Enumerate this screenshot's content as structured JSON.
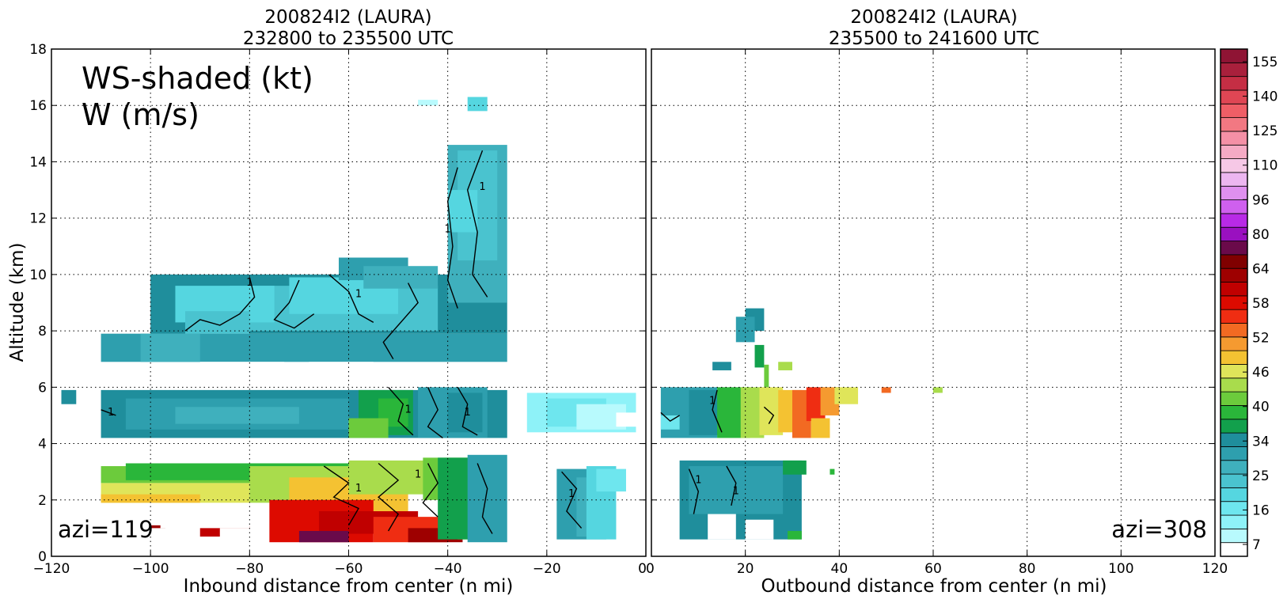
{
  "chart_data": [
    {
      "type": "heatmap",
      "title_line1": "200824I2 (LAURA)",
      "title_line2": "232800 to 235500 UTC",
      "xlabel": "Inbound distance from center (n mi)",
      "ylabel": "Altitude (km)",
      "xlim": [
        -120,
        0
      ],
      "ylim": [
        0,
        18
      ],
      "xticks": [
        "−120",
        "−100",
        "−80",
        "−60",
        "−40",
        "−20",
        "0"
      ],
      "yticks": [
        "0",
        "2",
        "4",
        "6",
        "8",
        "10",
        "12",
        "14",
        "16",
        "18"
      ],
      "grid": true,
      "legend_text_line1": "WS-shaded (kt)",
      "legend_text_line2": "W (m/s)",
      "annotation": "azi=119",
      "contour_label": "1"
    },
    {
      "type": "heatmap",
      "title_line1": "200824I2 (LAURA)",
      "title_line2": "235500 to 241600 UTC",
      "xlabel": "Outbound distance from center (n mi)",
      "xlim": [
        0,
        120
      ],
      "ylim": [
        0,
        18
      ],
      "xticks": [
        "0",
        "20",
        "40",
        "60",
        "80",
        "100",
        "120"
      ],
      "grid": true,
      "annotation": "azi=308",
      "contour_label": "1"
    }
  ],
  "colorbar": {
    "label_values": [
      "155",
      "140",
      "125",
      "110",
      "96",
      "80",
      "64",
      "58",
      "52",
      "46",
      "40",
      "34",
      "25",
      "16",
      "7"
    ],
    "colors_bottom_to_top": [
      "#ffffff",
      "#b8fafd",
      "#8ef2f8",
      "#6ee6ee",
      "#55d6e0",
      "#4ac3cf",
      "#3fb0bd",
      "#2e9fae",
      "#1f8e9c",
      "#12a04c",
      "#2ab63a",
      "#6ccb3c",
      "#a9dc4c",
      "#dfe55a",
      "#f4c232",
      "#f59a30",
      "#f26a22",
      "#ef2d12",
      "#dd0a00",
      "#c00000",
      "#9e0000",
      "#800000",
      "#6a0a4a",
      "#9a10c0",
      "#b82ae6",
      "#cf60ee",
      "#df90ef",
      "#ecb6f0",
      "#f6c8e6",
      "#f5aac4",
      "#f490a6",
      "#f27882",
      "#ef5e66",
      "#df4654",
      "#c52e44",
      "#a9203c",
      "#8f1434"
    ]
  }
}
